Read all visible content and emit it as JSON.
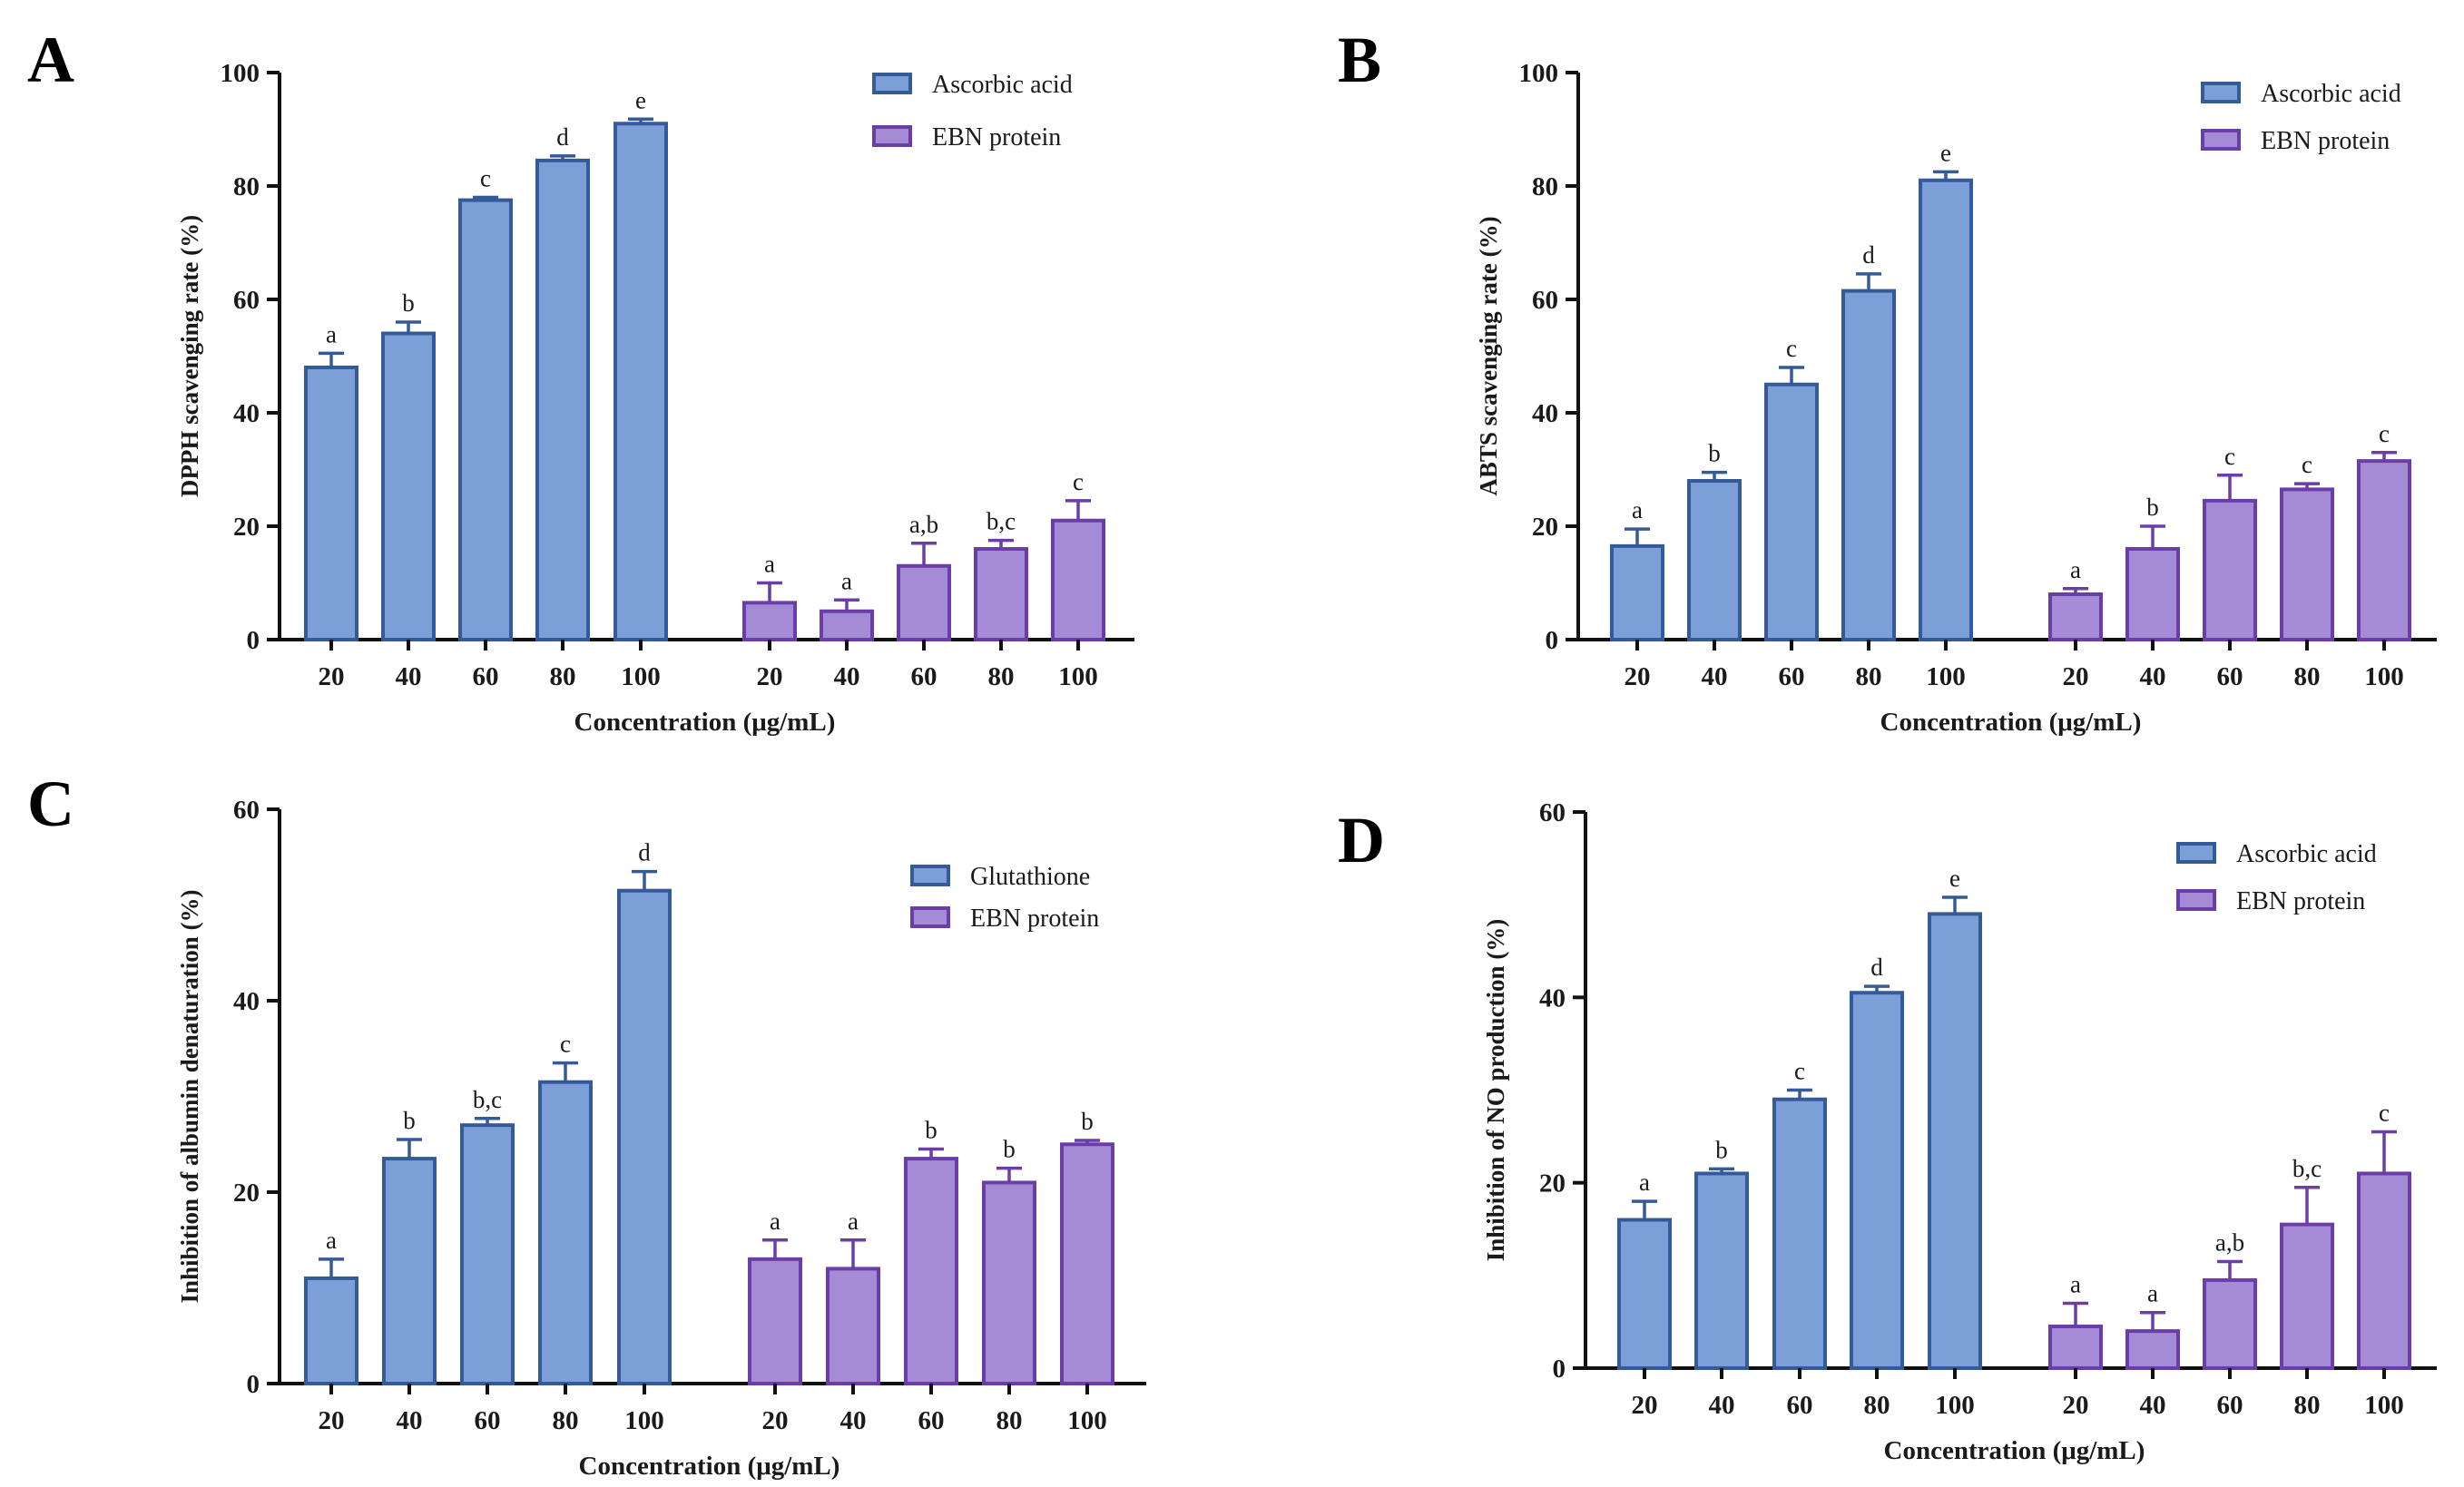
{
  "colors": {
    "ascorbic": "#7b9fd6",
    "ascorbic_stroke": "#355a9a",
    "ebn": "#a58bd6",
    "ebn_stroke": "#6b3da8"
  },
  "chart_data": [
    {
      "panel_label": "A",
      "type": "bar",
      "ylabel": "DPPH scavenging rate (%)",
      "xlabel": "Concentration (μg/mL)",
      "ylim": [
        0,
        100
      ],
      "yticks": [
        0,
        20,
        40,
        60,
        80,
        100
      ],
      "categories": [
        "20",
        "40",
        "60",
        "80",
        "100"
      ],
      "series": [
        {
          "name": "Ascorbic acid",
          "values": [
            48,
            54,
            77.5,
            84.5,
            91
          ],
          "errors": [
            2.5,
            2.0,
            0.5,
            0.8,
            0.8
          ],
          "letters": [
            "a",
            "b",
            "c",
            "d",
            "e"
          ]
        },
        {
          "name": "EBN protein",
          "values": [
            6.5,
            5,
            13,
            16,
            21
          ],
          "errors": [
            3.5,
            2.0,
            4.0,
            1.5,
            3.5
          ],
          "letters": [
            "a",
            "a",
            "a,b",
            "b,c",
            "c"
          ]
        }
      ]
    },
    {
      "panel_label": "B",
      "type": "bar",
      "ylabel": "ABTS scavenging rate (%)",
      "xlabel": "Concentration (μg/mL)",
      "ylim": [
        0,
        100
      ],
      "yticks": [
        0,
        20,
        40,
        60,
        80,
        100
      ],
      "categories": [
        "20",
        "40",
        "60",
        "80",
        "100"
      ],
      "series": [
        {
          "name": "Ascorbic acid",
          "values": [
            16.5,
            28,
            45,
            61.5,
            81
          ],
          "errors": [
            3.0,
            1.5,
            3.0,
            3.0,
            1.5
          ],
          "letters": [
            "a",
            "b",
            "c",
            "d",
            "e"
          ]
        },
        {
          "name": "EBN protein",
          "values": [
            8,
            16,
            24.5,
            26.5,
            31.5
          ],
          "errors": [
            1.0,
            4.0,
            4.5,
            1.0,
            1.5
          ],
          "letters": [
            "a",
            "b",
            "c",
            "c",
            "c"
          ]
        }
      ]
    },
    {
      "panel_label": "C",
      "type": "bar",
      "ylabel": "Inhibition of albumin denaturation (%)",
      "xlabel": "Concentration (μg/mL)",
      "ylim": [
        0,
        60
      ],
      "yticks": [
        0,
        20,
        40,
        60
      ],
      "categories": [
        "20",
        "40",
        "60",
        "80",
        "100"
      ],
      "series": [
        {
          "name": "Glutathione",
          "values": [
            11,
            23.5,
            27,
            31.5,
            51.5
          ],
          "errors": [
            2.0,
            2.0,
            0.7,
            2.0,
            2.0
          ],
          "letters": [
            "a",
            "b",
            "b,c",
            "c",
            "d"
          ]
        },
        {
          "name": "EBN protein",
          "values": [
            13,
            12,
            23.5,
            21,
            25
          ],
          "errors": [
            2.0,
            3.0,
            1.0,
            1.5,
            0.4
          ],
          "letters": [
            "a",
            "a",
            "b",
            "b",
            "b"
          ]
        }
      ]
    },
    {
      "panel_label": "D",
      "type": "bar",
      "ylabel": "Inhibition of NO production (%)",
      "xlabel": "Concentration (μg/mL)",
      "ylim": [
        0,
        60
      ],
      "yticks": [
        0,
        20,
        40,
        60
      ],
      "categories": [
        "20",
        "40",
        "60",
        "80",
        "100"
      ],
      "series": [
        {
          "name": "Ascorbic acid",
          "values": [
            16,
            21,
            29,
            40.5,
            49
          ],
          "errors": [
            2.0,
            0.5,
            1.0,
            0.7,
            1.8
          ],
          "letters": [
            "a",
            "b",
            "c",
            "d",
            "e"
          ]
        },
        {
          "name": "EBN protein",
          "values": [
            4.5,
            4,
            9.5,
            15.5,
            21
          ],
          "errors": [
            2.5,
            2.0,
            2.0,
            4.0,
            4.5
          ],
          "letters": [
            "a",
            "a",
            "a,b",
            "b,c",
            "c"
          ]
        }
      ]
    }
  ]
}
